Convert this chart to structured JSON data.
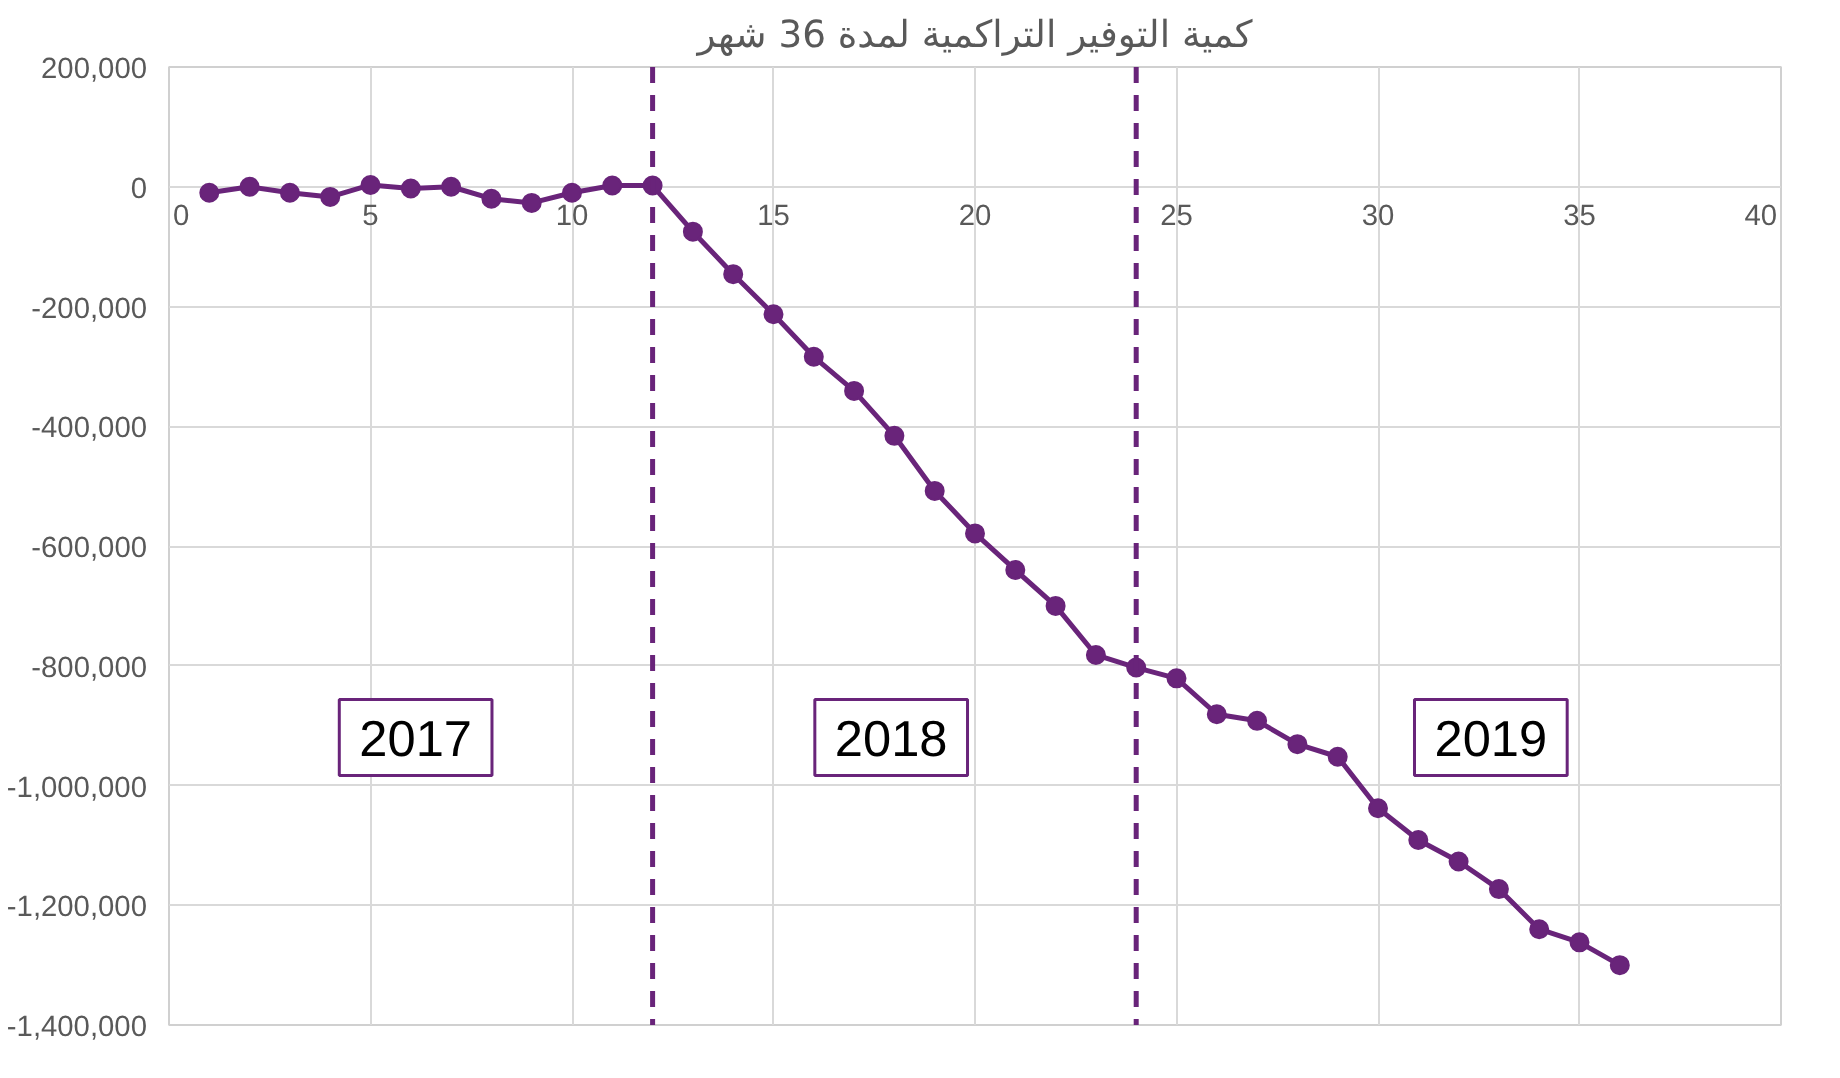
{
  "chart_data": {
    "type": "line",
    "title": "كمية التوفير التراكمية لمدة 36 شهر",
    "x": [
      1,
      2,
      3,
      4,
      5,
      6,
      7,
      8,
      9,
      10,
      11,
      12,
      13,
      14,
      15,
      16,
      17,
      18,
      19,
      20,
      21,
      22,
      23,
      24,
      25,
      26,
      27,
      28,
      29,
      30,
      31,
      32,
      33,
      34,
      35,
      36
    ],
    "series": [
      {
        "color": "#69247a",
        "values": [
          -10000,
          0,
          -10000,
          -17000,
          3000,
          -3000,
          0,
          -20000,
          -27000,
          -10000,
          2000,
          2000,
          -75000,
          -146000,
          -213000,
          -284000,
          -341000,
          -416000,
          -508000,
          -579000,
          -640000,
          -700000,
          -782000,
          -803000,
          -821000,
          -881000,
          -892000,
          -931000,
          -952000,
          -1038000,
          -1091000,
          -1127000,
          -1173000,
          -1240000,
          -1262000,
          -1300000
        ]
      }
    ],
    "xlim": [
      0,
      40
    ],
    "xticks": [
      0,
      5,
      10,
      15,
      20,
      25,
      30,
      35,
      40
    ],
    "ylim": [
      -1400000,
      200000
    ],
    "yticks": [
      {
        "value": 200000,
        "label": "200,000"
      },
      0,
      {
        "value": -200000,
        "label": "-200,000"
      },
      {
        "value": -400000,
        "label": "-400,000"
      },
      {
        "value": -600000,
        "label": "-600,000"
      },
      {
        "value": -800000,
        "label": "-800,000"
      },
      {
        "value": -1000000,
        "label": "-1,000,000"
      },
      {
        "value": -1200000,
        "label": "-1,200,000"
      },
      {
        "value": -1400000,
        "label": "-1,400,000"
      }
    ],
    "ref_lines": [
      {
        "axis": "x",
        "value": 12,
        "color": "#69247a",
        "line_style": "dashed"
      },
      {
        "axis": "x",
        "value": 24,
        "color": "#69247a",
        "line_style": "dashed"
      }
    ],
    "annotations": [
      "2017",
      "2018",
      "2019"
    ],
    "grid": true,
    "marker": "circle",
    "line_style": "solid"
  }
}
